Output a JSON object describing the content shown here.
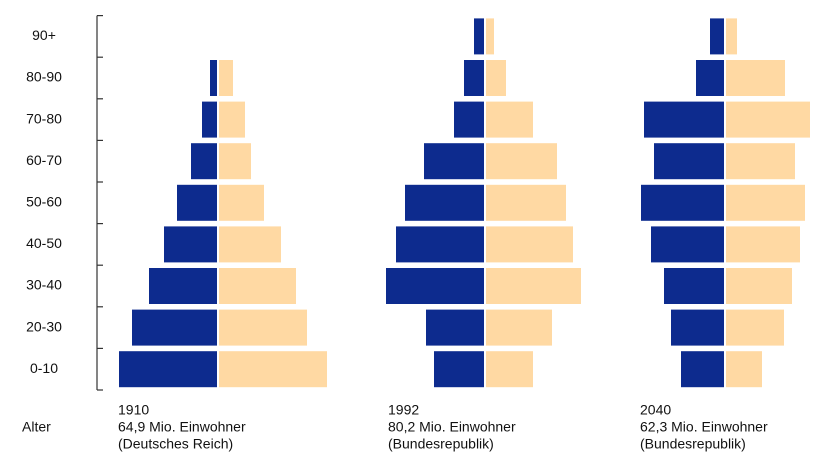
{
  "chart_data": {
    "type": "pyramid",
    "categories": [
      "0-10",
      "20-30",
      "30-40",
      "40-50",
      "50-60",
      "60-70",
      "70-80",
      "80-90",
      "90+"
    ],
    "x_label": "Alter",
    "colors": {
      "left": "#0d2b8e",
      "right": "#ffd9a3"
    },
    "charts": [
      {
        "caption": [
          "1910",
          "64,9 Mio. Einwohner",
          "(Deutsches Reich)"
        ],
        "left": [
          98,
          85,
          68,
          53,
          40,
          26,
          15,
          7,
          0
        ],
        "right": [
          108,
          88,
          77,
          62,
          45,
          32,
          26,
          14,
          0
        ]
      },
      {
        "caption": [
          "1992",
          "80,2 Mio. Einwohner",
          "(Bundesrepublik)"
        ],
        "left": [
          50,
          58,
          98,
          88,
          79,
          60,
          30,
          20,
          10
        ],
        "right": [
          47,
          66,
          95,
          87,
          80,
          71,
          47,
          20,
          8
        ]
      },
      {
        "caption": [
          "2040",
          "62,3 Mio. Einwohner",
          "(Bundesrepublik)"
        ],
        "left": [
          43,
          53,
          60,
          73,
          83,
          70,
          80,
          28,
          14
        ],
        "right": [
          36,
          58,
          66,
          74,
          79,
          69,
          84,
          59,
          11
        ]
      }
    ]
  }
}
